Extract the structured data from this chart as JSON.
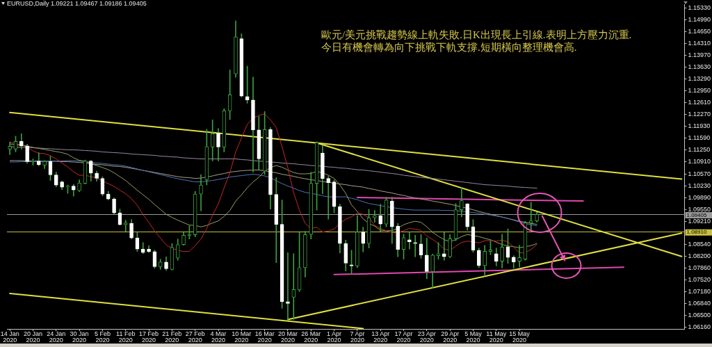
{
  "chart_data": {
    "type": "candlestick",
    "title": "EURUSD,Daily 1.09221 1.09467 1.09186 1.09405",
    "annotations": [
      "歐元/美元挑戰趨勢線上軌失敗.日K出現長上引線.表明上方壓力沉重.",
      "今日有機會轉為向下挑戰下軌支撐.短期橫向整理機會高."
    ],
    "categories": [
      "14 Jan 2020",
      null,
      null,
      null,
      "20 Jan 2020",
      null,
      null,
      null,
      "24 Jan 2020",
      null,
      null,
      null,
      "30 Jan 2020",
      null,
      null,
      null,
      "5 Feb 2020",
      null,
      null,
      null,
      "11 Feb 2020",
      null,
      null,
      null,
      "17 Feb 2020",
      null,
      null,
      null,
      "21 Feb 2020",
      null,
      null,
      null,
      "27 Feb 2020",
      null,
      null,
      null,
      "4 Mar 2020",
      null,
      null,
      null,
      "10 Mar 2020",
      null,
      null,
      null,
      "16 Mar 2020",
      null,
      null,
      null,
      "20 Mar 2020",
      null,
      null,
      null,
      "26 Mar 2020",
      null,
      null,
      null,
      "1 Apr 2020",
      null,
      null,
      null,
      "7 Apr 2020",
      null,
      null,
      null,
      "13 Apr 2020",
      null,
      null,
      null,
      "17 Apr 2020",
      null,
      null,
      null,
      "23 Apr 2020",
      null,
      null,
      null,
      "29 Apr 2020",
      null,
      null,
      null,
      "5 May 2020",
      null,
      null,
      null,
      "11 May 2020",
      null,
      null,
      null,
      "15 May 2020",
      null,
      null,
      null,
      null,
      null,
      null,
      null,
      null,
      null,
      null,
      null,
      null,
      null,
      null,
      null,
      null,
      null,
      null,
      null,
      null,
      null,
      null,
      null,
      null,
      null,
      null,
      null,
      null
    ],
    "color": "#3ca03c",
    "ohlc": [
      [
        1.1128,
        1.1148,
        1.1112,
        1.1136
      ],
      [
        1.1128,
        1.1165,
        1.112,
        1.115
      ],
      [
        1.115,
        1.1172,
        1.1128,
        1.1137
      ],
      [
        1.1137,
        1.1142,
        1.1087,
        1.1092
      ],
      [
        1.1093,
        1.11,
        1.1082,
        1.1095
      ],
      [
        1.1094,
        1.1118,
        1.108,
        1.1083
      ],
      [
        1.1082,
        1.1095,
        1.1072,
        1.1093
      ],
      [
        1.1093,
        1.1108,
        1.1038,
        1.1054
      ],
      [
        1.1054,
        1.1062,
        1.102,
        1.1025
      ],
      [
        1.1034,
        1.1037,
        1.1012,
        1.1019
      ],
      [
        1.102,
        1.1025,
        1.1001,
        1.1022
      ],
      [
        1.1022,
        1.1027,
        1.0993,
        1.1011
      ],
      [
        1.1009,
        1.104,
        1.1006,
        1.1031
      ],
      [
        1.103,
        1.1097,
        1.1028,
        1.1094
      ],
      [
        1.1094,
        1.1096,
        1.1036,
        1.1059
      ],
      [
        1.1059,
        1.1065,
        1.1036,
        1.1044
      ],
      [
        1.1044,
        1.1049,
        1.0994,
        1.0999
      ],
      [
        1.0999,
        1.1007,
        1.0982,
        1.0985
      ],
      [
        1.0985,
        1.0988,
        1.0942,
        1.0945
      ],
      [
        1.0945,
        1.0956,
        1.091,
        1.0911
      ],
      [
        1.0911,
        1.0924,
        1.0892,
        1.0916
      ],
      [
        1.0915,
        1.0926,
        1.087,
        1.0873
      ],
      [
        1.0873,
        1.0889,
        1.0834,
        1.0841
      ],
      [
        1.0841,
        1.086,
        1.0828,
        1.0831
      ],
      [
        1.0841,
        1.0851,
        1.0831,
        1.0834
      ],
      [
        1.0834,
        1.0838,
        1.0786,
        1.0791
      ],
      [
        1.0791,
        1.0812,
        1.0783,
        1.0804
      ],
      [
        1.0804,
        1.0819,
        1.078,
        1.0785
      ],
      [
        1.0783,
        1.0857,
        1.0781,
        1.0846
      ],
      [
        1.0815,
        1.087,
        1.0809,
        1.0854
      ],
      [
        1.0854,
        1.0889,
        1.0852,
        1.0881
      ],
      [
        1.088,
        1.0908,
        1.087,
        1.0883
      ],
      [
        1.0882,
        1.1007,
        1.0876,
        1.0999
      ],
      [
        1.0999,
        1.1055,
        1.0951,
        1.1025
      ],
      [
        1.104,
        1.1185,
        1.1025,
        1.1135
      ],
      [
        1.1134,
        1.1212,
        1.1094,
        1.1172
      ],
      [
        1.1174,
        1.1187,
        1.1094,
        1.1134
      ],
      [
        1.1134,
        1.1244,
        1.112,
        1.1238
      ],
      [
        1.1238,
        1.1355,
        1.1213,
        1.1284
      ],
      [
        1.1344,
        1.1496,
        1.1334,
        1.145
      ],
      [
        1.1445,
        1.1459,
        1.1277,
        1.128
      ],
      [
        1.1279,
        1.1366,
        1.126,
        1.1269
      ],
      [
        1.1269,
        1.1335,
        1.1062,
        1.1183
      ],
      [
        1.1183,
        1.1222,
        1.1069,
        1.11
      ],
      [
        1.1065,
        1.1236,
        1.1055,
        1.1184
      ],
      [
        1.1184,
        1.119,
        1.0956,
        1.0998
      ],
      [
        1.0998,
        1.1046,
        1.0802,
        1.0912
      ],
      [
        1.0912,
        1.0982,
        1.0671,
        1.069
      ],
      [
        1.069,
        1.0831,
        1.0639,
        1.0685
      ],
      [
        1.0703,
        1.0828,
        1.0639,
        1.0725
      ],
      [
        1.0724,
        1.0889,
        1.0719,
        1.0788
      ],
      [
        1.0788,
        1.0892,
        1.0761,
        1.0883
      ],
      [
        1.0883,
        1.1062,
        1.087,
        1.103
      ],
      [
        1.103,
        1.1149,
        1.0953,
        1.1146
      ],
      [
        1.1117,
        1.1139,
        1.1,
        1.1043
      ],
      [
        1.1044,
        1.105,
        1.0927,
        1.1032
      ],
      [
        1.1034,
        1.104,
        1.0945,
        1.0963
      ],
      [
        1.0963,
        1.097,
        1.083,
        1.0857
      ],
      [
        1.0857,
        1.0867,
        1.0778,
        1.0801
      ],
      [
        1.0796,
        1.0838,
        1.0769,
        1.0793
      ],
      [
        1.0793,
        1.0937,
        1.0788,
        1.089
      ],
      [
        1.089,
        1.0904,
        1.0833,
        1.0857
      ],
      [
        1.0857,
        1.0955,
        1.0844,
        1.0931
      ],
      [
        1.0931,
        1.0952,
        1.0918,
        1.0937
      ],
      [
        1.0937,
        1.097,
        1.0892,
        1.0913
      ],
      [
        1.0913,
        1.099,
        1.0905,
        1.0982
      ],
      [
        1.0979,
        1.099,
        1.0857,
        1.0905
      ],
      [
        1.0907,
        1.0915,
        1.0819,
        1.084
      ],
      [
        1.084,
        1.0884,
        1.0812,
        1.0874
      ],
      [
        1.0868,
        1.089,
        1.0841,
        1.0862
      ],
      [
        1.086,
        1.0881,
        1.0819,
        1.0857
      ],
      [
        1.0856,
        1.0883,
        1.0815,
        1.0824
      ],
      [
        1.0824,
        1.0873,
        1.0756,
        1.0777
      ],
      [
        1.0777,
        1.0827,
        1.0729,
        1.0824
      ],
      [
        1.0822,
        1.086,
        1.0812,
        1.0828
      ],
      [
        1.0828,
        1.0889,
        1.0809,
        1.0819
      ],
      [
        1.0819,
        1.0883,
        1.0816,
        1.0871
      ],
      [
        1.0871,
        1.0972,
        1.0865,
        1.0954
      ],
      [
        1.0954,
        1.1017,
        1.0934,
        1.098
      ],
      [
        1.0971,
        1.0972,
        1.0895,
        1.0905
      ],
      [
        1.0905,
        1.0926,
        1.0832,
        1.0838
      ],
      [
        1.0838,
        1.0844,
        1.0788,
        1.0794
      ],
      [
        1.0794,
        1.0852,
        1.0767,
        1.0835
      ],
      [
        1.0834,
        1.0865,
        1.0825,
        1.0839
      ],
      [
        1.0828,
        1.0844,
        1.0793,
        1.0806
      ],
      [
        1.0806,
        1.0884,
        1.0787,
        1.0847
      ],
      [
        1.0848,
        1.0899,
        1.08,
        1.0817
      ],
      [
        1.0818,
        1.0822,
        1.0786,
        1.0804
      ],
      [
        1.0806,
        1.0852,
        1.079,
        1.0817
      ],
      [
        1.0812,
        1.0921,
        1.0809,
        1.0916
      ],
      [
        1.0916,
        1.0976,
        1.0895,
        1.0922
      ],
      [
        1.09221,
        1.09467,
        1.09186,
        1.09405
      ],
      null,
      null,
      null,
      null,
      null,
      null,
      null,
      null,
      null,
      null,
      null,
      null,
      null,
      null,
      null,
      null,
      null,
      null,
      null,
      null,
      null,
      null,
      null,
      null,
      null
    ],
    "colors": [
      "#3ca03c",
      "#3ca03c",
      "#ffffff",
      "#ffffff",
      "#3ca03c",
      "#ffffff",
      "#3ca03c",
      "#ffffff",
      "#ffffff",
      "#ffffff",
      "#3ca03c",
      "#ffffff",
      "#3ca03c",
      "#3ca03c",
      "#ffffff",
      "#ffffff",
      "#ffffff",
      "#ffffff",
      "#ffffff",
      "#ffffff",
      "#3ca03c",
      "#ffffff",
      "#ffffff",
      "#ffffff",
      "#ffffff",
      "#ffffff",
      "#3ca03c",
      "#ffffff",
      "#3ca03c",
      "#3ca03c",
      "#3ca03c",
      "#3ca03c",
      "#3ca03c",
      "#3ca03c",
      "#3ca03c",
      "#3ca03c",
      "#ffffff",
      "#3ca03c",
      "#3ca03c",
      "#3ca03c",
      "#ffffff",
      "#ffffff",
      "#ffffff",
      "#ffffff",
      "#3ca03c",
      "#ffffff",
      "#ffffff",
      "#ffffff",
      "#ffffff",
      "#3ca03c",
      "#3ca03c",
      "#3ca03c",
      "#3ca03c",
      "#3ca03c",
      "#ffffff",
      "#ffffff",
      "#ffffff",
      "#ffffff",
      "#ffffff",
      "#ffffff",
      "#3ca03c",
      "#ffffff",
      "#3ca03c",
      "#3ca03c",
      "#ffffff",
      "#3ca03c",
      "#ffffff",
      "#ffffff",
      "#3ca03c",
      "#ffffff",
      "#ffffff",
      "#ffffff",
      "#ffffff",
      "#3ca03c",
      "#3ca03c",
      "#ffffff",
      "#3ca03c",
      "#3ca03c",
      "#3ca03c",
      "#ffffff",
      "#ffffff",
      "#ffffff",
      "#3ca03c",
      "#3ca03c",
      "#ffffff",
      "#3ca03c",
      "#ffffff",
      "#ffffff",
      "#3ca03c",
      "#3ca03c",
      "#3ca03c",
      "#3ca03c",
      null,
      null,
      null,
      null,
      null,
      null,
      null,
      null,
      null,
      null,
      null,
      null,
      null,
      null,
      null,
      null,
      null,
      null,
      null,
      null,
      null,
      null,
      null,
      null,
      null
    ],
    "series": [
      {
        "type": "line",
        "color": "#c42828",
        "values": [
          1.1149,
          1.1143,
          1.114,
          1.1133,
          1.1123,
          1.1116,
          1.1115,
          1.1109,
          1.11,
          1.1088,
          1.1077,
          1.1063,
          1.1053,
          1.1053,
          1.1049,
          1.1045,
          1.1036,
          1.1029,
          1.1021,
          1.101,
          1.1,
          1.0986,
          1.0967,
          1.094,
          1.0918,
          1.0893,
          1.0873,
          1.0853,
          1.0843,
          1.0838,
          1.0834,
          1.0835,
          1.0851,
          1.087,
          1.09,
          1.0938,
          1.0971,
          1.1017,
          1.1061,
          1.112,
          1.116,
          1.1199,
          1.1217,
          1.1225,
          1.1229,
          1.1212,
          1.119,
          1.1135,
          1.1075,
          1.1003,
          1.0953,
          1.0915,
          1.09,
          1.0904,
          1.089,
          1.0893,
          1.0899,
          1.0915,
          1.0927,
          1.0934,
          1.0944,
          1.0941,
          1.0931,
          1.0909,
          1.09,
          1.0894,
          1.0889,
          1.0887,
          1.0894,
          1.0901,
          1.0898,
          1.0895,
          1.0879,
          1.0869,
          1.0857,
          1.0841,
          1.0838,
          1.0849,
          1.086,
          1.0864,
          1.0862,
          1.0859,
          1.0865,
          1.0866,
          1.0864,
          1.0867,
          1.0862,
          1.0847,
          1.083,
          1.0831,
          1.084,
          1.0854,
          null,
          null,
          null,
          null,
          null,
          null,
          null,
          null,
          null,
          null,
          null,
          null,
          null,
          null,
          null,
          null,
          null,
          null,
          null,
          null,
          null,
          null,
          null,
          null,
          null
        ]
      },
      {
        "type": "line",
        "color": "#94a064",
        "values": [
          1.1143,
          1.1141,
          1.1139,
          1.1137,
          1.1133,
          1.113,
          1.1127,
          1.1124,
          1.1121,
          1.1118,
          1.1113,
          1.1103,
          1.1096,
          1.1093,
          1.1086,
          1.1081,
          1.1075,
          1.1069,
          1.106,
          1.1049,
          1.1038,
          1.1024,
          1.101,
          1.0997,
          1.0984,
          1.0969,
          1.0955,
          1.0941,
          1.0932,
          1.0924,
          1.0917,
          1.091,
          1.0909,
          1.0905,
          1.0909,
          1.0916,
          1.0922,
          1.0935,
          1.0952,
          1.0979,
          1.0997,
          1.1017,
          1.1034,
          1.1047,
          1.1065,
          1.1075,
          1.1081,
          1.1076,
          1.1068,
          1.1061,
          1.1057,
          1.1057,
          1.1058,
          1.1064,
          1.106,
          1.1053,
          1.1044,
          1.1025,
          1.1001,
          1.0968,
          1.0949,
          1.0928,
          1.0915,
          1.0907,
          1.0895,
          1.0894,
          1.0894,
          1.0901,
          1.0911,
          1.0917,
          1.0921,
          1.0918,
          1.0905,
          1.0889,
          1.0878,
          1.0868,
          1.0863,
          1.0868,
          1.0877,
          1.0883,
          1.088,
          1.0877,
          1.0872,
          1.0868,
          1.0861,
          1.0854,
          1.085,
          1.0848,
          1.0845,
          1.0848,
          1.0851,
          1.0857,
          null,
          null,
          null,
          null,
          null,
          null,
          null,
          null,
          null,
          null,
          null,
          null,
          null,
          null,
          null,
          null,
          null,
          null,
          null,
          null,
          null,
          null,
          null,
          null,
          null
        ]
      },
      {
        "type": "line",
        "color": "#4a74bc",
        "values": [
          1.1091,
          1.1091,
          1.1092,
          1.1092,
          1.1092,
          1.1093,
          1.1093,
          1.1094,
          1.1094,
          1.1094,
          1.1095,
          1.1095,
          1.1094,
          1.1092,
          1.109,
          1.1088,
          1.1087,
          1.1085,
          1.1083,
          1.1082,
          1.1079,
          1.1075,
          1.1071,
          1.1067,
          1.1063,
          1.1059,
          1.1055,
          1.1051,
          1.1047,
          1.1043,
          1.104,
          1.1037,
          1.1034,
          1.1034,
          1.1036,
          1.1038,
          1.1041,
          1.1044,
          1.1048,
          1.105,
          1.1052,
          1.1054,
          1.1056,
          1.1054,
          1.1051,
          1.1046,
          1.1037,
          1.1029,
          1.1022,
          1.1016,
          1.1009,
          1.1004,
          1.1001,
          1.0998,
          1.0994,
          1.0991,
          1.0991,
          1.0991,
          1.0991,
          1.0987,
          1.0983,
          1.0977,
          1.0972,
          1.0969,
          1.0966,
          1.0963,
          1.096,
          1.0958,
          1.0956,
          1.0954,
          1.0953,
          1.0953,
          1.0953,
          1.0953,
          1.0953,
          1.0952,
          1.0952,
          1.0951,
          1.095,
          1.0948,
          1.0946,
          1.0944,
          1.0941,
          1.0939,
          1.0936,
          1.0933,
          1.0929,
          1.0924,
          1.0919,
          1.0914,
          1.0911,
          1.0908,
          null,
          null,
          null,
          null,
          null,
          null,
          null,
          null,
          null,
          null,
          null,
          null,
          null,
          null,
          null,
          null,
          null,
          null,
          null,
          null,
          null,
          null,
          null,
          null,
          null
        ]
      },
      {
        "type": "line",
        "color": "#ac9e84",
        "values": [
          1.1095,
          1.1095,
          1.1095,
          1.1094,
          1.1094,
          1.1094,
          1.1093,
          1.1093,
          1.1093,
          1.1092,
          1.1092,
          1.1091,
          1.109,
          1.1088,
          1.1086,
          1.1084,
          1.1083,
          1.1081,
          1.1079,
          1.1078,
          1.1076,
          1.1073,
          1.107,
          1.1067,
          1.1064,
          1.1061,
          1.1058,
          1.1055,
          1.1052,
          1.1049,
          1.1047,
          1.1046,
          1.1044,
          1.1045,
          1.1048,
          1.1051,
          1.1055,
          1.1058,
          1.1062,
          1.1064,
          1.1066,
          1.1067,
          1.1068,
          1.1068,
          1.1066,
          1.1063,
          1.106,
          1.1056,
          1.1053,
          1.105,
          1.1046,
          1.1043,
          1.104,
          1.1038,
          1.1035,
          1.1033,
          1.103,
          1.1028,
          1.1026,
          1.1023,
          1.1021,
          1.1019,
          1.1015,
          1.1012,
          1.1008,
          1.1005,
          1.1002,
          1.0998,
          1.0995,
          1.0991,
          1.0988,
          1.0985,
          1.0982,
          1.0979,
          1.0976,
          1.0973,
          1.097,
          1.0966,
          1.0962,
          1.0958,
          1.0954,
          1.0949,
          1.0945,
          1.0941,
          1.0937,
          1.0933,
          1.0929,
          1.0925,
          1.0921,
          1.0918,
          1.0915,
          1.0912,
          null,
          null,
          null,
          null,
          null,
          null,
          null,
          null,
          null,
          null,
          null,
          null,
          null,
          null,
          null,
          null,
          null,
          null,
          null,
          null,
          null,
          null,
          null,
          null,
          null
        ]
      },
      {
        "type": "line",
        "color": "#9a86a6",
        "values": [
          1.1135,
          1.1134,
          1.1133,
          1.1133,
          1.1132,
          1.1131,
          1.113,
          1.1129,
          1.1128,
          1.1127,
          1.1126,
          1.1126,
          1.1125,
          1.1124,
          1.1123,
          1.1122,
          1.112,
          1.1119,
          1.1118,
          1.1117,
          1.1116,
          1.1114,
          1.1113,
          1.1112,
          1.1111,
          1.111,
          1.1108,
          1.1107,
          1.1106,
          1.1105,
          1.1103,
          1.1102,
          1.1101,
          1.11,
          1.11,
          1.11,
          1.11,
          1.11,
          1.11,
          1.11,
          1.1098,
          1.1097,
          1.1095,
          1.1094,
          1.1092,
          1.1091,
          1.109,
          1.1088,
          1.1087,
          1.1086,
          1.1084,
          1.1083,
          1.1081,
          1.108,
          1.1079,
          1.1077,
          1.1076,
          1.1074,
          1.1073,
          1.1071,
          1.1069,
          1.1068,
          1.1066,
          1.1064,
          1.1062,
          1.106,
          1.1058,
          1.1056,
          1.1053,
          1.1051,
          1.1049,
          1.1047,
          1.1045,
          1.1044,
          1.1042,
          1.104,
          1.1038,
          1.1036,
          1.1034,
          1.1032,
          1.103,
          1.1028,
          1.1026,
          1.1025,
          1.1024,
          1.1023,
          1.1022,
          1.102,
          1.1019,
          1.1018,
          1.1017,
          1.1016,
          null,
          null,
          null,
          null,
          null,
          null,
          null,
          null,
          null,
          null,
          null,
          null,
          null,
          null,
          null,
          null,
          null,
          null,
          null,
          null,
          null,
          null,
          null,
          null,
          null
        ]
      },
      {
        "type": "line",
        "color": "#e0e040",
        "values": [
          1.1233,
          null,
          null,
          null,
          null,
          null,
          null,
          null,
          null,
          null,
          null,
          null,
          null,
          null,
          null,
          null,
          null,
          null,
          null,
          null,
          null,
          null,
          null,
          null,
          null,
          null,
          null,
          null,
          null,
          null,
          null,
          null,
          null,
          null,
          null,
          null,
          null,
          null,
          null,
          null,
          null,
          null,
          null,
          null,
          null,
          null,
          null,
          null,
          null,
          null,
          null,
          null,
          null,
          null,
          null,
          null,
          null,
          null,
          null,
          null,
          null,
          null,
          null,
          null,
          null,
          null,
          null,
          null,
          null,
          null,
          null,
          null,
          null,
          null,
          null,
          null,
          null,
          null,
          null,
          null,
          null,
          null,
          null,
          null,
          null,
          null,
          null,
          null,
          null,
          null,
          null,
          null,
          null,
          null,
          null,
          null,
          null,
          null,
          null,
          null,
          null,
          null,
          null,
          null,
          null,
          null,
          null,
          null,
          null,
          null,
          null,
          null,
          null,
          null,
          null,
          null,
          1.1042
        ]
      },
      {
        "type": "line",
        "color": "#e0e040",
        "values": [
          null,
          null,
          null,
          null,
          null,
          null,
          null,
          null,
          null,
          null,
          null,
          null,
          null,
          null,
          null,
          null,
          null,
          null,
          null,
          null,
          null,
          null,
          null,
          null,
          null,
          null,
          null,
          null,
          null,
          null,
          null,
          null,
          null,
          null,
          null,
          null,
          null,
          null,
          null,
          null,
          null,
          null,
          null,
          null,
          null,
          null,
          null,
          null,
          null,
          null,
          null,
          null,
          null,
          1.1146,
          null,
          null,
          null,
          null,
          null,
          null,
          null,
          null,
          null,
          null,
          null,
          null,
          null,
          null,
          null,
          null,
          null,
          null,
          null,
          null,
          null,
          null,
          null,
          null,
          null,
          null,
          null,
          null,
          null,
          null,
          null,
          null,
          null,
          null,
          null,
          null,
          null,
          null,
          null,
          null,
          null,
          null,
          null,
          null,
          null,
          null,
          null,
          null,
          null,
          null,
          null,
          null,
          null,
          null,
          null,
          null,
          null,
          null,
          null,
          null,
          null,
          null,
          1.082
        ]
      },
      {
        "type": "line",
        "color": "#e0e040",
        "values": [
          null,
          null,
          null,
          null,
          null,
          null,
          null,
          null,
          null,
          null,
          null,
          null,
          null,
          null,
          null,
          null,
          null,
          null,
          null,
          null,
          null,
          null,
          null,
          null,
          null,
          null,
          null,
          null,
          null,
          null,
          null,
          null,
          null,
          null,
          null,
          null,
          null,
          null,
          null,
          null,
          null,
          null,
          null,
          null,
          null,
          null,
          null,
          null,
          1.0639,
          null,
          null,
          null,
          null,
          null,
          null,
          null,
          null,
          null,
          null,
          null,
          null,
          null,
          null,
          null,
          null,
          null,
          null,
          null,
          null,
          null,
          null,
          null,
          null,
          null,
          null,
          null,
          null,
          null,
          null,
          null,
          null,
          null,
          null,
          null,
          null,
          null,
          null,
          null,
          null,
          null,
          null,
          null,
          null,
          null,
          null,
          null,
          null,
          null,
          null,
          null,
          null,
          null,
          null,
          null,
          null,
          null,
          null,
          null,
          null,
          null,
          null,
          null,
          null,
          null,
          null,
          null,
          1.0887
        ]
      },
      {
        "type": "line",
        "color": "#e0e040",
        "values": [
          1.0714,
          null,
          null,
          null,
          null,
          null,
          null,
          null,
          null,
          null,
          null,
          null,
          null,
          null,
          null,
          null,
          null,
          null,
          null,
          null,
          null,
          null,
          null,
          null,
          null,
          null,
          null,
          null,
          null,
          null,
          null,
          null,
          null,
          null,
          null,
          null,
          null,
          null,
          null,
          null,
          null,
          null,
          null,
          null,
          null,
          null,
          null,
          null,
          null,
          null,
          null,
          null,
          null,
          null,
          null,
          null,
          null,
          null,
          null,
          null,
          null,
          1.0613,
          null,
          null,
          null,
          null,
          null,
          null,
          null,
          null,
          null,
          null,
          null,
          null,
          null,
          null,
          null,
          null,
          null,
          null,
          null,
          null,
          null,
          null,
          null,
          null,
          null,
          null,
          null,
          null,
          null,
          null,
          null,
          null,
          null,
          null,
          null,
          null,
          null,
          null,
          null,
          null,
          null,
          null,
          null,
          null,
          null,
          null,
          null,
          null,
          null,
          null,
          null,
          null,
          null,
          null,
          null
        ]
      },
      {
        "type": "line",
        "color": "#e048b0",
        "values": [
          null,
          null,
          null,
          null,
          null,
          null,
          null,
          null,
          null,
          null,
          null,
          null,
          null,
          null,
          null,
          null,
          null,
          null,
          null,
          null,
          null,
          null,
          null,
          null,
          null,
          null,
          null,
          null,
          null,
          null,
          null,
          null,
          null,
          null,
          null,
          null,
          null,
          null,
          null,
          null,
          null,
          null,
          null,
          null,
          null,
          null,
          null,
          null,
          null,
          null,
          null,
          null,
          null,
          null,
          null,
          null,
          null,
          null,
          null,
          null,
          1.0989,
          null,
          null,
          null,
          null,
          null,
          null,
          null,
          null,
          null,
          null,
          null,
          null,
          null,
          null,
          null,
          null,
          null,
          null,
          null,
          null,
          null,
          null,
          null,
          null,
          null,
          null,
          null,
          null,
          null,
          null,
          null,
          null,
          null,
          null,
          null,
          null,
          null,
          null,
          1.0979,
          null,
          null,
          null,
          null,
          null,
          null,
          null,
          null,
          null,
          null,
          null,
          null,
          null,
          null,
          null,
          null,
          null
        ]
      },
      {
        "type": "line",
        "color": "#e048b0",
        "values": [
          null,
          null,
          null,
          null,
          null,
          null,
          null,
          null,
          null,
          null,
          null,
          null,
          null,
          null,
          null,
          null,
          null,
          null,
          null,
          null,
          null,
          null,
          null,
          null,
          null,
          null,
          null,
          null,
          null,
          null,
          null,
          null,
          null,
          null,
          null,
          null,
          null,
          null,
          null,
          null,
          null,
          null,
          null,
          null,
          null,
          null,
          null,
          null,
          null,
          null,
          null,
          null,
          null,
          null,
          null,
          null,
          1.0768,
          null,
          null,
          null,
          null,
          null,
          null,
          null,
          null,
          null,
          null,
          null,
          null,
          null,
          null,
          null,
          null,
          null,
          null,
          null,
          null,
          null,
          null,
          null,
          null,
          null,
          null,
          null,
          null,
          null,
          null,
          null,
          null,
          null,
          null,
          null,
          null,
          null,
          null,
          null,
          null,
          null,
          null,
          null,
          null,
          null,
          null,
          null,
          null,
          null,
          1.0789,
          null,
          null,
          null,
          null,
          null,
          null,
          null,
          null,
          null,
          null
        ]
      }
    ],
    "ref_lines": [
      {
        "axis": "y",
        "value": 1.09405,
        "label": "1.09405",
        "color": "#9a9a9a"
      },
      {
        "axis": "y",
        "value": 1.0891,
        "label": "1.08910",
        "color": "#c8c040"
      }
    ],
    "ylim": [
      1.0612,
      1.1543
    ],
    "yticks": [
      {
        "value": 1.1533,
        "label": "1.15330"
      },
      {
        "value": 1.1499,
        "label": "1.14990"
      },
      {
        "value": 1.1465,
        "label": "1.14650"
      },
      {
        "value": 1.1431,
        "label": "1.14310"
      },
      {
        "value": 1.1397,
        "label": "1.13970"
      },
      {
        "value": 1.1363,
        "label": "1.13630"
      },
      {
        "value": 1.1329,
        "label": "1.13290"
      },
      {
        "value": 1.1295,
        "label": "1.12950"
      },
      {
        "value": 1.1261,
        "label": "1.12610"
      },
      {
        "value": 1.1227,
        "label": "1.12270"
      },
      {
        "value": 1.1193,
        "label": "1.11930"
      },
      {
        "value": 1.1159,
        "label": "1.11590"
      },
      {
        "value": 1.1125,
        "label": "1.11250"
      },
      {
        "value": 1.1091,
        "label": "1.10910"
      },
      {
        "value": 1.1057,
        "label": "1.10570"
      },
      {
        "value": 1.1023,
        "label": "1.10230"
      },
      {
        "value": 1.0989,
        "label": "1.09890"
      },
      {
        "value": 1.0955,
        "label": "1.09550"
      },
      {
        "value": 1.0921,
        "label": "1.09210"
      },
      {
        "value": 1.0854,
        "label": "1.08540"
      },
      {
        "value": 1.082,
        "label": "1.08200"
      },
      {
        "value": 1.0786,
        "label": "1.07860"
      },
      {
        "value": 1.0752,
        "label": "1.07520"
      },
      {
        "value": 1.0718,
        "label": "1.07180"
      },
      {
        "value": 1.0684,
        "label": "1.06840"
      },
      {
        "value": 1.065,
        "label": "1.06500"
      },
      {
        "value": 1.0616,
        "label": "1.06160"
      }
    ]
  }
}
